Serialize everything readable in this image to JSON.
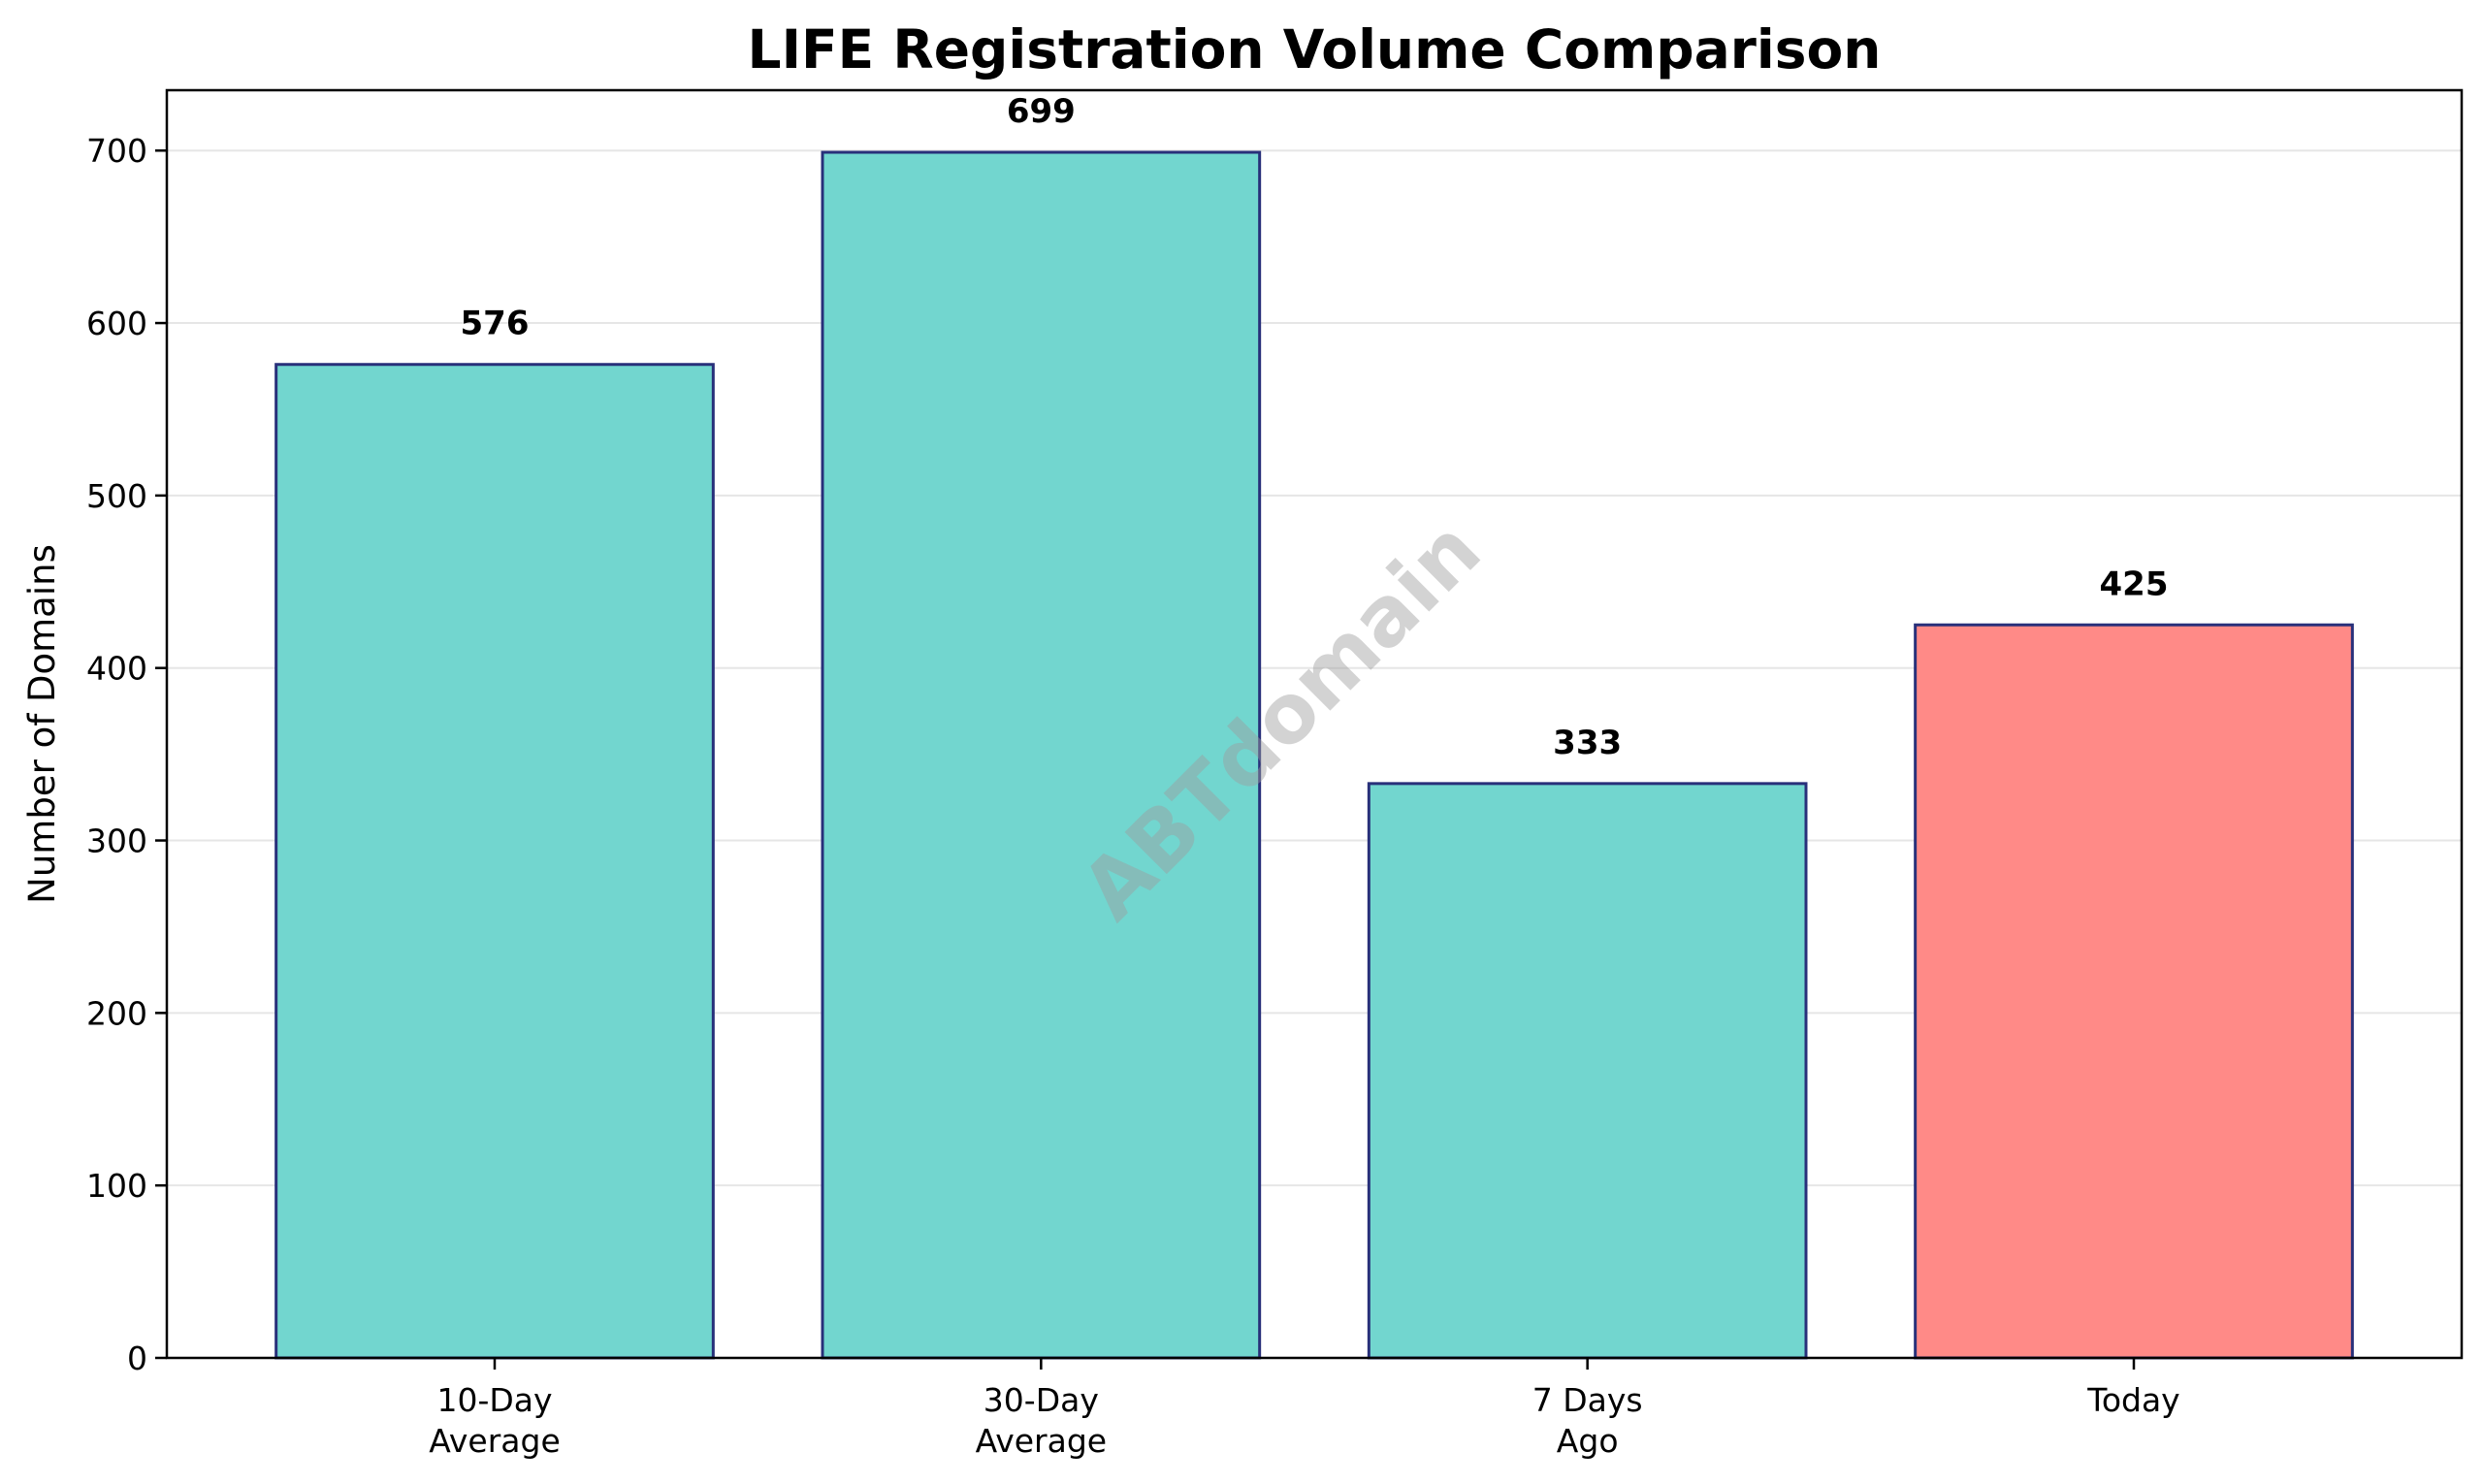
{
  "chart_data": {
    "type": "bar",
    "title": "LIFE Registration Volume Comparison",
    "xlabel": "",
    "ylabel": "Number of Domains",
    "ylim": [
      0,
      735
    ],
    "yticks": [
      0,
      100,
      200,
      300,
      400,
      500,
      600,
      700
    ],
    "grid": "horizontal",
    "categories": [
      [
        "10-Day",
        "Average"
      ],
      [
        "30-Day",
        "Average"
      ],
      [
        "7 Days",
        "Ago"
      ],
      [
        "Today"
      ]
    ],
    "values": [
      576,
      699,
      333,
      425
    ],
    "value_labels": [
      "576",
      "699",
      "333",
      "425"
    ],
    "colors": {
      "bar_default": "#72d6cf",
      "bar_highlight": "#ff8a87",
      "bar_edge": "#28307a",
      "grid": "#e6e6e6",
      "axis": "#000000"
    },
    "highlight_index": 3,
    "watermark": "ABTdomain"
  }
}
